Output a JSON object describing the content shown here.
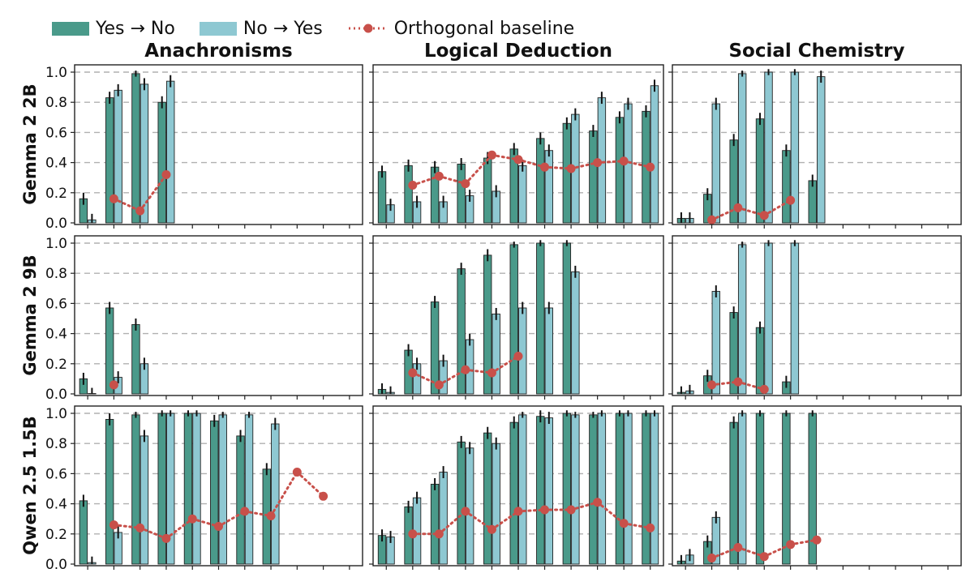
{
  "legend": {
    "yes_no": "Yes → No",
    "no_yes": "No → Yes",
    "baseline": "Orthogonal baseline"
  },
  "colors": {
    "yes_no": "#4a9a8a",
    "no_yes": "#8ec8d2",
    "baseline": "#c8504a",
    "grid": "#b0b0b0"
  },
  "columns": [
    "Anachronisms",
    "Logical Deduction",
    "Social Chemistry"
  ],
  "rows": [
    "Gemma 2 2B",
    "Gemma 2 9B",
    "Qwen 2.5 1.5B"
  ],
  "chart_data": [
    {
      "type": "bar",
      "row": "Gemma 2 2B",
      "column": "Anachronisms",
      "ylim": [
        0,
        1.05
      ],
      "yticks": [
        "0.0",
        "0.2",
        "0.4",
        "0.6",
        "0.8",
        "1.0"
      ],
      "grid": true,
      "series": [
        {
          "name": "Yes → No",
          "values": [
            0.16,
            0.83,
            0.99,
            0.8,
            null,
            null,
            null,
            null,
            null,
            null,
            null
          ]
        },
        {
          "name": "No → Yes",
          "values": [
            0.02,
            0.88,
            0.92,
            0.94,
            null,
            null,
            null,
            null,
            null,
            null,
            null
          ]
        },
        {
          "name": "Orthogonal baseline",
          "values": [
            null,
            0.16,
            0.08,
            0.32,
            null,
            null,
            null,
            null,
            null,
            null,
            null
          ]
        }
      ]
    },
    {
      "type": "bar",
      "row": "Gemma 2 2B",
      "column": "Logical Deduction",
      "ylim": [
        0,
        1.05
      ],
      "grid": true,
      "series": [
        {
          "name": "Yes → No",
          "values": [
            0.34,
            0.38,
            0.37,
            0.39,
            0.43,
            0.49,
            0.56,
            0.66,
            0.61,
            0.7,
            0.74
          ]
        },
        {
          "name": "No → Yes",
          "values": [
            0.12,
            0.14,
            0.14,
            0.18,
            0.21,
            0.38,
            0.48,
            0.72,
            0.83,
            0.79,
            0.91
          ]
        },
        {
          "name": "Orthogonal baseline",
          "values": [
            null,
            0.25,
            0.31,
            0.26,
            0.45,
            0.42,
            0.37,
            0.36,
            0.4,
            0.41,
            0.37
          ]
        }
      ]
    },
    {
      "type": "bar",
      "row": "Gemma 2 2B",
      "column": "Social Chemistry",
      "ylim": [
        0,
        1.05
      ],
      "grid": true,
      "series": [
        {
          "name": "Yes → No",
          "values": [
            0.03,
            0.19,
            0.55,
            0.69,
            0.48,
            0.28,
            null,
            null,
            null,
            null,
            null
          ]
        },
        {
          "name": "No → Yes",
          "values": [
            0.03,
            0.79,
            0.99,
            1.0,
            1.0,
            0.97,
            null,
            null,
            null,
            null,
            null
          ]
        },
        {
          "name": "Orthogonal baseline",
          "values": [
            null,
            0.02,
            0.1,
            0.05,
            0.15,
            null,
            null,
            null,
            null,
            null,
            null
          ]
        }
      ]
    },
    {
      "type": "bar",
      "row": "Gemma 2 9B",
      "column": "Anachronisms",
      "ylim": [
        0,
        1.05
      ],
      "grid": true,
      "series": [
        {
          "name": "Yes → No",
          "values": [
            0.1,
            0.57,
            0.46,
            null,
            null,
            null,
            null,
            null,
            null,
            null,
            null
          ]
        },
        {
          "name": "No → Yes",
          "values": [
            0.0,
            0.11,
            0.2,
            null,
            null,
            null,
            null,
            null,
            null,
            null,
            null
          ]
        },
        {
          "name": "Orthogonal baseline",
          "values": [
            null,
            0.06,
            null,
            null,
            null,
            null,
            null,
            null,
            null,
            null,
            null
          ]
        }
      ]
    },
    {
      "type": "bar",
      "row": "Gemma 2 9B",
      "column": "Logical Deduction",
      "ylim": [
        0,
        1.05
      ],
      "grid": true,
      "series": [
        {
          "name": "Yes → No",
          "values": [
            0.03,
            0.29,
            0.61,
            0.83,
            0.92,
            0.99,
            1.0,
            1.0,
            null,
            null,
            null
          ]
        },
        {
          "name": "No → Yes",
          "values": [
            0.01,
            0.2,
            0.22,
            0.36,
            0.53,
            0.57,
            0.57,
            0.81,
            null,
            null,
            null
          ]
        },
        {
          "name": "Orthogonal baseline",
          "values": [
            null,
            0.14,
            0.06,
            0.16,
            0.14,
            0.25,
            null,
            null,
            null,
            null,
            null
          ]
        }
      ]
    },
    {
      "type": "bar",
      "row": "Gemma 2 9B",
      "column": "Social Chemistry",
      "ylim": [
        0,
        1.05
      ],
      "grid": true,
      "series": [
        {
          "name": "Yes → No",
          "values": [
            0.01,
            0.12,
            0.54,
            0.44,
            0.08,
            null,
            null,
            null,
            null,
            null,
            null
          ]
        },
        {
          "name": "No → Yes",
          "values": [
            0.02,
            0.68,
            0.99,
            1.0,
            1.0,
            null,
            null,
            null,
            null,
            null,
            null
          ]
        },
        {
          "name": "Orthogonal baseline",
          "values": [
            null,
            0.06,
            0.08,
            0.03,
            null,
            null,
            null,
            null,
            null,
            null,
            null
          ]
        }
      ]
    },
    {
      "type": "bar",
      "row": "Qwen 2.5 1.5B",
      "column": "Anachronisms",
      "ylim": [
        0,
        1.05
      ],
      "grid": true,
      "series": [
        {
          "name": "Yes → No",
          "values": [
            0.42,
            0.96,
            0.99,
            1.0,
            1.0,
            0.95,
            0.85,
            0.63,
            null,
            null,
            null
          ]
        },
        {
          "name": "No → Yes",
          "values": [
            0.01,
            0.21,
            0.85,
            1.0,
            1.0,
            0.99,
            0.99,
            0.93,
            null,
            null,
            null
          ]
        },
        {
          "name": "Orthogonal baseline",
          "values": [
            null,
            0.26,
            0.24,
            0.17,
            0.3,
            0.25,
            0.35,
            0.32,
            0.61,
            0.45,
            null
          ]
        }
      ]
    },
    {
      "type": "bar",
      "row": "Qwen 2.5 1.5B",
      "column": "Logical Deduction",
      "ylim": [
        0,
        1.05
      ],
      "grid": true,
      "series": [
        {
          "name": "Yes → No",
          "values": [
            0.19,
            0.38,
            0.53,
            0.81,
            0.87,
            0.94,
            0.98,
            1.0,
            0.99,
            1.0,
            1.0
          ]
        },
        {
          "name": "No → Yes",
          "values": [
            0.18,
            0.44,
            0.61,
            0.77,
            0.8,
            0.99,
            0.97,
            0.99,
            1.0,
            1.0,
            1.0
          ]
        },
        {
          "name": "Orthogonal baseline",
          "values": [
            null,
            0.2,
            0.2,
            0.35,
            0.23,
            0.35,
            0.36,
            0.36,
            0.41,
            0.27,
            0.24
          ]
        }
      ]
    },
    {
      "type": "bar",
      "row": "Qwen 2.5 1.5B",
      "column": "Social Chemistry",
      "ylim": [
        0,
        1.05
      ],
      "grid": true,
      "series": [
        {
          "name": "Yes → No",
          "values": [
            0.02,
            0.15,
            0.94,
            1.0,
            1.0,
            1.0,
            null,
            null,
            null,
            null,
            null
          ]
        },
        {
          "name": "No → Yes",
          "values": [
            0.06,
            0.31,
            1.0,
            null,
            null,
            null,
            null,
            null,
            null,
            null,
            null
          ]
        },
        {
          "name": "Orthogonal baseline",
          "values": [
            null,
            0.04,
            0.11,
            0.05,
            0.13,
            0.16,
            null,
            null,
            null,
            null,
            null
          ]
        }
      ]
    }
  ]
}
